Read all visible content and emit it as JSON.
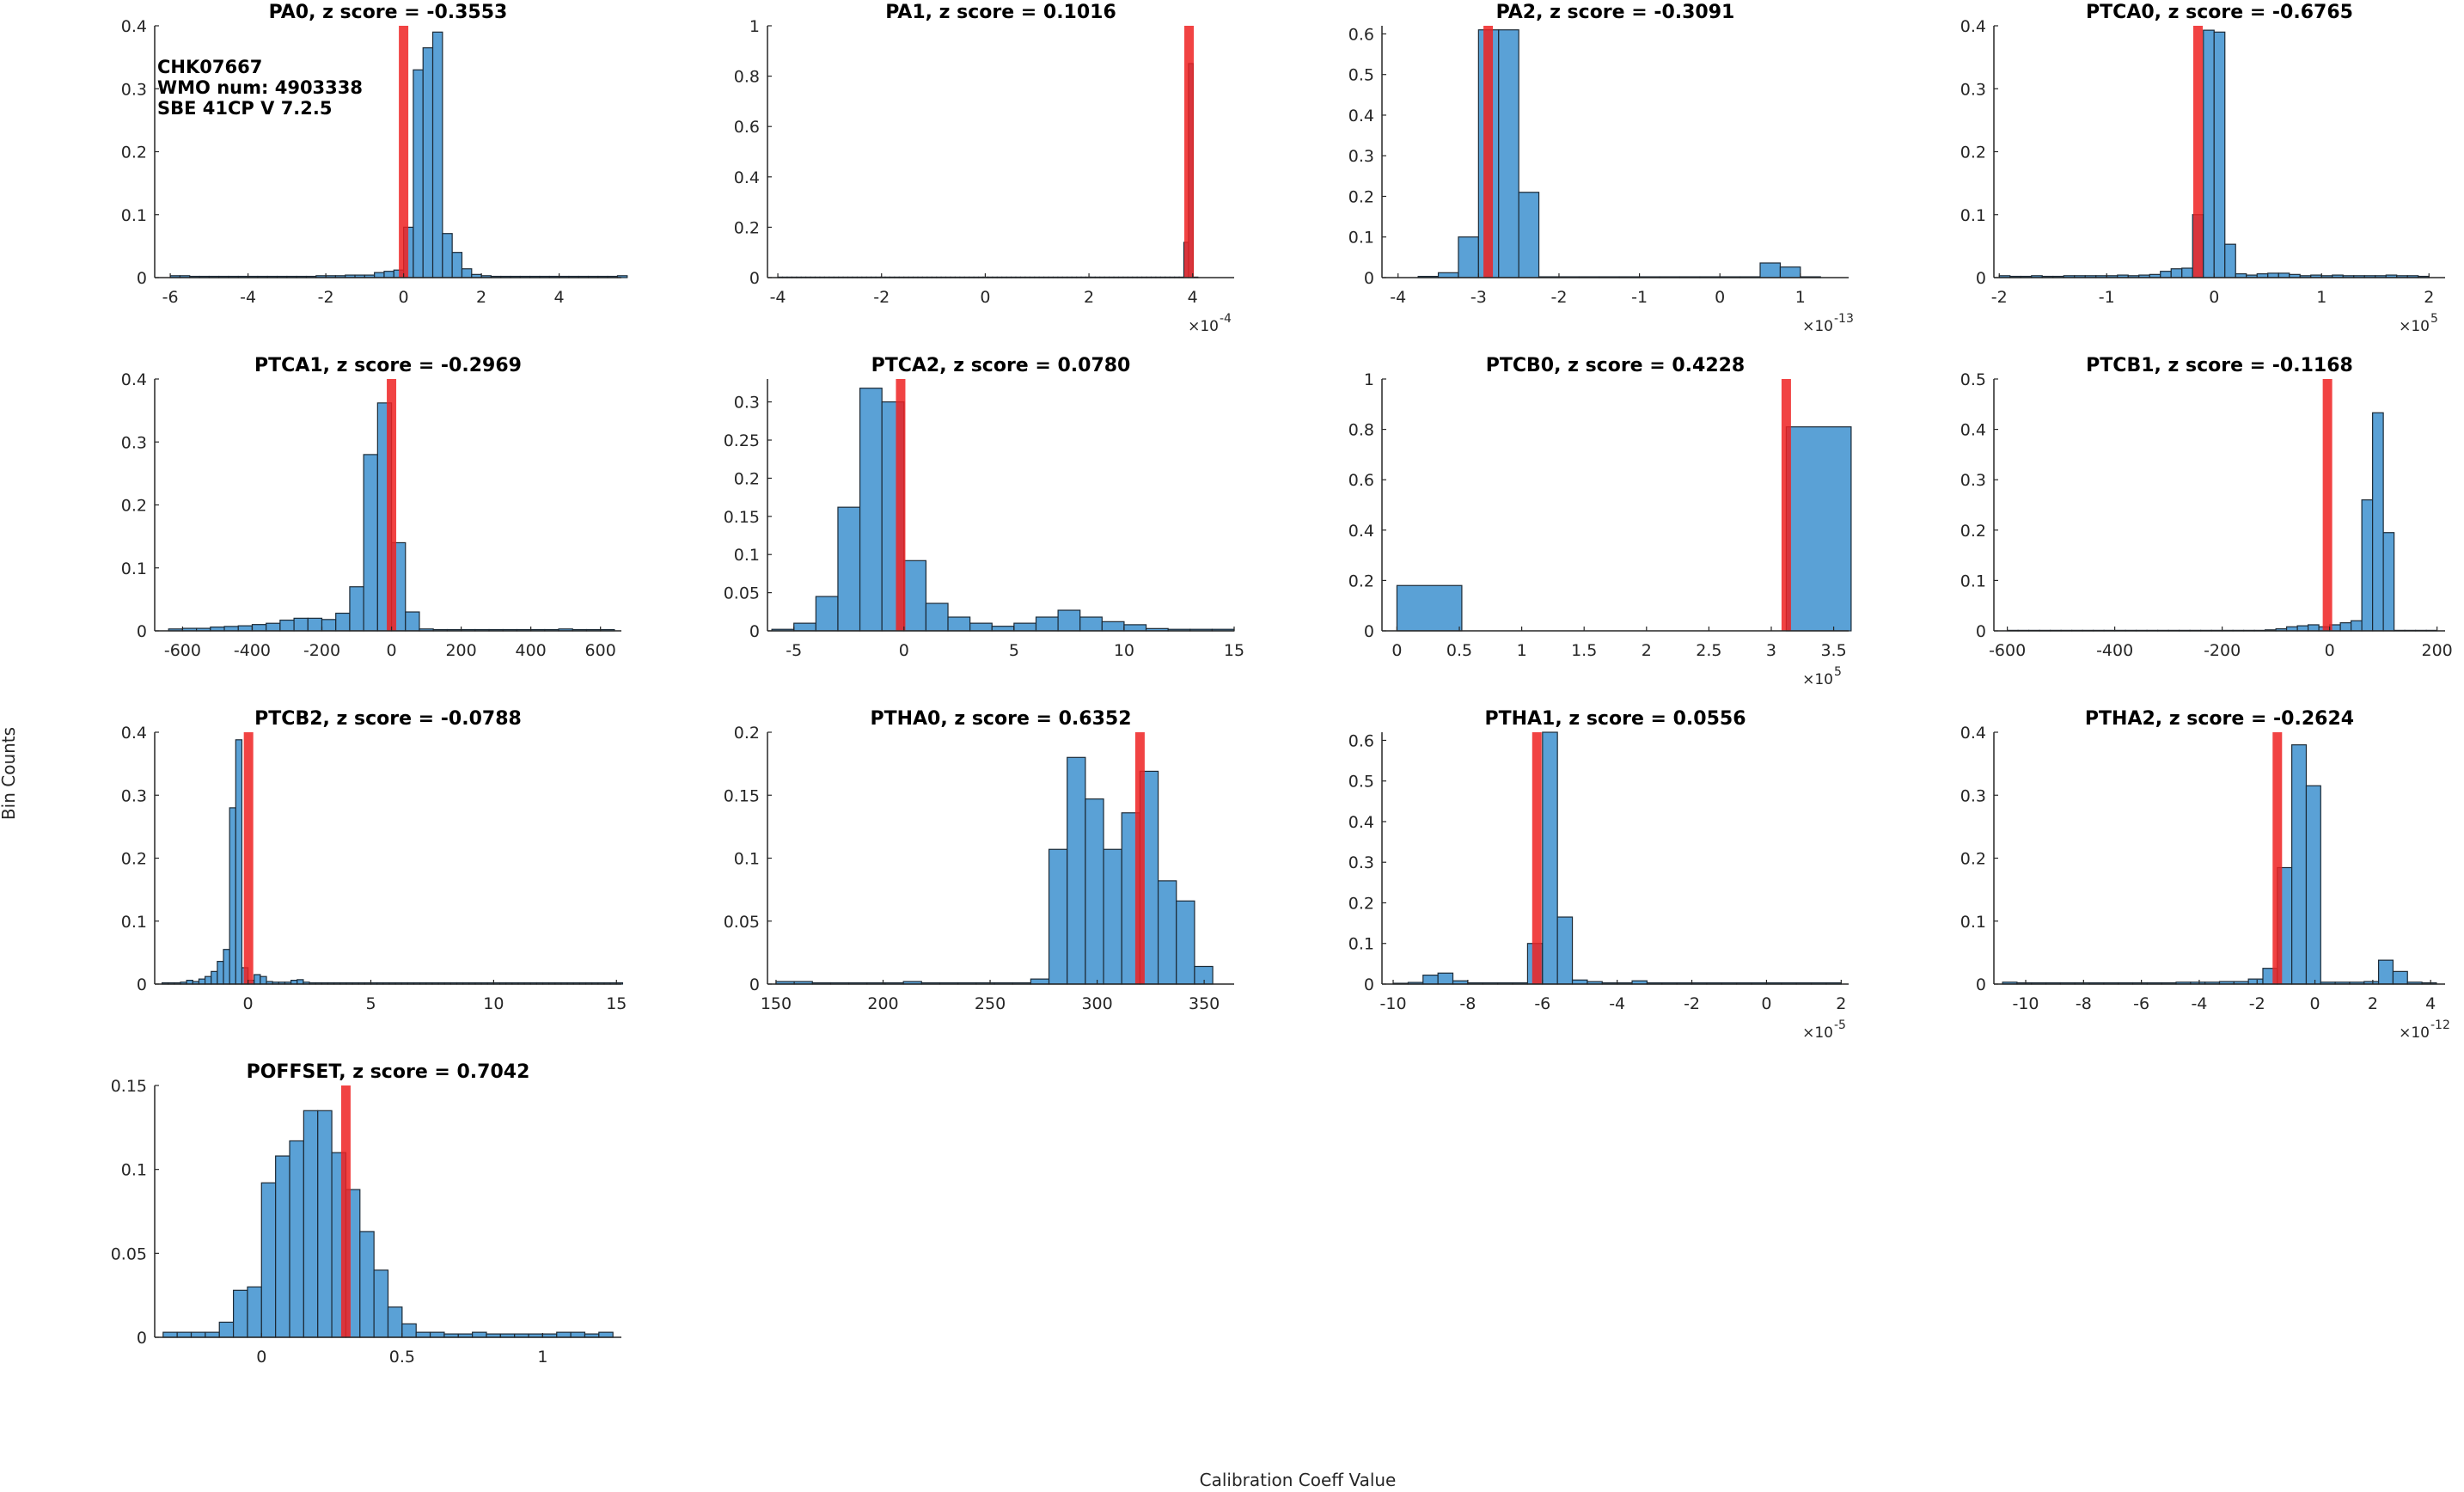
{
  "info": {
    "line1": "CHK07667",
    "line2": "WMO num: 4903338",
    "line3": "SBE 41CP V 7.2.5"
  },
  "figure": {
    "ylabel": "Bin Counts",
    "xlabel": "Calibration Coeff Value"
  },
  "colors": {
    "bar": "#5aa1d6",
    "bar_edge": "#1c2a36",
    "marker": "#ee2222"
  },
  "chart_data": [
    {
      "type": "bar",
      "title": "PA0, z score = -0.3553",
      "xlim": [
        -6.4,
        5.6
      ],
      "ylim": [
        0,
        0.4
      ],
      "xticks": [
        -6,
        -4,
        -2,
        0,
        2,
        4
      ],
      "xtick_labels": [
        "-6",
        "-4",
        "-2",
        "0",
        "2",
        "4"
      ],
      "yticks": [
        0,
        0.1,
        0.2,
        0.3,
        0.4
      ],
      "ytick_labels": [
        "0",
        "0.1",
        "0.2",
        "0.3",
        "0.4"
      ],
      "exponent": "",
      "bin_start": -6.0,
      "bin_width": 0.25,
      "values": [
        0.003,
        0.003,
        0.002,
        0.002,
        0.002,
        0.002,
        0.002,
        0.002,
        0.002,
        0.002,
        0.002,
        0.002,
        0.002,
        0.002,
        0.002,
        0.003,
        0.003,
        0.003,
        0.004,
        0.004,
        0.004,
        0.008,
        0.01,
        0.012,
        0.08,
        0.33,
        0.365,
        0.39,
        0.07,
        0.04,
        0.014,
        0.005,
        0.003,
        0.002,
        0.002,
        0.002,
        0.002,
        0.002,
        0.002,
        0.002,
        0.002,
        0.002,
        0.002,
        0.002,
        0.002,
        0.002,
        0.003
      ],
      "marker": 0.0
    },
    {
      "type": "bar",
      "title": "PA1, z score = 0.1016",
      "xlim": [
        -4.2,
        4.8
      ],
      "ylim": [
        0,
        1
      ],
      "xticks": [
        -4,
        -2,
        0,
        2,
        4
      ],
      "xtick_labels": [
        "-4",
        "-2",
        "0",
        "2",
        "4"
      ],
      "yticks": [
        0,
        0.2,
        0.4,
        0.6,
        0.8,
        1
      ],
      "ytick_labels": [
        "0",
        "0.2",
        "0.4",
        "0.6",
        "0.8",
        "1"
      ],
      "exponent": "-4",
      "bin_start": -4.0,
      "bin_width": 0.09,
      "values": [
        0.002,
        0.002,
        0.002,
        0.002,
        0.002,
        0.002,
        0.002,
        0.002,
        0.002,
        0.002,
        0.002,
        0.002,
        0.002,
        0.002,
        0.002,
        0.002,
        0.002,
        0.002,
        0.002,
        0.002,
        0.002,
        0.002,
        0.002,
        0.002,
        0.002,
        0.002,
        0.002,
        0.002,
        0.002,
        0.002,
        0.002,
        0.002,
        0.002,
        0.002,
        0.002,
        0.002,
        0.002,
        0.002,
        0.002,
        0.002,
        0.002,
        0.002,
        0.002,
        0.002,
        0.002,
        0.002,
        0.002,
        0.002,
        0.002,
        0.002,
        0.002,
        0.002,
        0.002,
        0.002,
        0.002,
        0.002,
        0.002,
        0.002,
        0.002,
        0.002,
        0.002,
        0.002,
        0.002,
        0.002,
        0.002,
        0.002,
        0.002,
        0.002,
        0.002,
        0.002,
        0.002,
        0.002,
        0.002,
        0.002,
        0.002,
        0.002,
        0.002,
        0.002,
        0.002,
        0.002,
        0.002,
        0.002,
        0.002,
        0.002,
        0.002,
        0.002,
        0.002,
        0.14,
        0.85,
        0.002
      ],
      "marker": 3.93
    },
    {
      "type": "bar",
      "title": "PA2, z score = -0.3091",
      "xlim": [
        -4.2,
        1.6
      ],
      "ylim": [
        0,
        0.62
      ],
      "xticks": [
        -4,
        -3,
        -2,
        -1,
        0,
        1
      ],
      "xtick_labels": [
        "-4",
        "-3",
        "-2",
        "-1",
        "0",
        "1"
      ],
      "yticks": [
        0,
        0.1,
        0.2,
        0.3,
        0.4,
        0.5,
        0.6
      ],
      "ytick_labels": [
        "0",
        "0.1",
        "0.2",
        "0.3",
        "0.4",
        "0.5",
        "0.6"
      ],
      "exponent": "-13",
      "bin_start": -3.75,
      "bin_width": 0.25,
      "values": [
        0.003,
        0.012,
        0.1,
        0.61,
        0.61,
        0.21,
        0.002,
        0.002,
        0.002,
        0.002,
        0.002,
        0.002,
        0.002,
        0.002,
        0.002,
        0.002,
        0.002,
        0.036,
        0.026,
        0.002
      ],
      "marker": -2.88
    },
    {
      "type": "bar",
      "title": "PTCA0, z score = -0.6765",
      "xlim": [
        -2.05,
        2.15
      ],
      "ylim": [
        0,
        0.4
      ],
      "xticks": [
        -2,
        -1,
        0,
        1,
        2
      ],
      "xtick_labels": [
        "-2",
        "-1",
        "0",
        "1",
        "2"
      ],
      "yticks": [
        0,
        0.1,
        0.2,
        0.3,
        0.4
      ],
      "ytick_labels": [
        "0",
        "0.1",
        "0.2",
        "0.3",
        "0.4"
      ],
      "exponent": "5",
      "bin_start": -2.0,
      "bin_width": 0.1,
      "values": [
        0.003,
        0.002,
        0.002,
        0.003,
        0.002,
        0.002,
        0.003,
        0.003,
        0.003,
        0.003,
        0.003,
        0.004,
        0.003,
        0.004,
        0.005,
        0.01,
        0.014,
        0.015,
        0.1,
        0.393,
        0.39,
        0.053,
        0.006,
        0.004,
        0.006,
        0.007,
        0.007,
        0.005,
        0.003,
        0.004,
        0.003,
        0.004,
        0.003,
        0.003,
        0.003,
        0.003,
        0.004,
        0.003,
        0.003,
        0.002
      ],
      "marker": -0.15
    },
    {
      "type": "bar",
      "title": "PTCA1, z score = -0.2969",
      "xlim": [
        -680,
        660
      ],
      "ylim": [
        0,
        0.4
      ],
      "xticks": [
        -600,
        -400,
        -200,
        0,
        200,
        400,
        600
      ],
      "xtick_labels": [
        "-600",
        "-400",
        "-200",
        "0",
        "200",
        "400",
        "600"
      ],
      "yticks": [
        0,
        0.1,
        0.2,
        0.3,
        0.4
      ],
      "ytick_labels": [
        "0",
        "0.1",
        "0.2",
        "0.3",
        "0.4"
      ],
      "exponent": "",
      "bin_start": -640,
      "bin_width": 40,
      "values": [
        0.003,
        0.004,
        0.004,
        0.006,
        0.007,
        0.008,
        0.01,
        0.012,
        0.017,
        0.02,
        0.02,
        0.018,
        0.028,
        0.07,
        0.28,
        0.362,
        0.14,
        0.03,
        0.003,
        0.002,
        0.002,
        0.002,
        0.002,
        0.002,
        0.002,
        0.002,
        0.002,
        0.002,
        0.003,
        0.002,
        0.002,
        0.002
      ],
      "marker": 0
    },
    {
      "type": "bar",
      "title": "PTCA2, z score = 0.0780",
      "xlim": [
        -6.2,
        15
      ],
      "ylim": [
        0,
        0.33
      ],
      "xticks": [
        -5,
        0,
        5,
        10,
        15
      ],
      "xtick_labels": [
        "-5",
        "0",
        "5",
        "10",
        "15"
      ],
      "yticks": [
        0,
        0.05,
        0.1,
        0.15,
        0.2,
        0.25,
        0.3
      ],
      "ytick_labels": [
        "0",
        "0.05",
        "0.1",
        "0.15",
        "0.2",
        "0.25",
        "0.3"
      ],
      "exponent": "",
      "bin_start": -6.0,
      "bin_width": 1.0,
      "values": [
        0.002,
        0.01,
        0.045,
        0.162,
        0.318,
        0.3,
        0.092,
        0.036,
        0.018,
        0.01,
        0.006,
        0.01,
        0.018,
        0.027,
        0.018,
        0.012,
        0.008,
        0.003,
        0.002,
        0.002,
        0.002
      ],
      "marker": -0.15
    },
    {
      "type": "bar",
      "title": "PTCB0, z score = 0.4228",
      "xlim": [
        -0.12,
        3.62
      ],
      "ylim": [
        0,
        1
      ],
      "xticks": [
        0,
        0.5,
        1,
        1.5,
        2,
        2.5,
        3,
        3.5
      ],
      "xtick_labels": [
        "0",
        "0.5",
        "1",
        "1.5",
        "2",
        "2.5",
        "3",
        "3.5"
      ],
      "yticks": [
        0,
        0.2,
        0.4,
        0.6,
        0.8,
        1
      ],
      "ytick_labels": [
        "0",
        "0.2",
        "0.4",
        "0.6",
        "0.8",
        "1"
      ],
      "exponent": "5",
      "bin_start": 0,
      "bin_width": 0.52,
      "values": [
        0.18,
        0,
        0,
        0,
        0,
        0,
        0.81
      ],
      "marker": 3.12
    },
    {
      "type": "bar",
      "title": "PTCB1, z score = -0.1168",
      "xlim": [
        -625,
        215
      ],
      "ylim": [
        0,
        0.5
      ],
      "xticks": [
        -600,
        -400,
        -200,
        0,
        200
      ],
      "xtick_labels": [
        "-600",
        "-400",
        "-200",
        "0",
        "200"
      ],
      "yticks": [
        0,
        0.1,
        0.2,
        0.3,
        0.4,
        0.5
      ],
      "ytick_labels": [
        "0",
        "0.1",
        "0.2",
        "0.3",
        "0.4",
        "0.5"
      ],
      "exponent": "",
      "bin_start": -600,
      "bin_width": 20,
      "values": [
        0.001,
        0.001,
        0.001,
        0.001,
        0.001,
        0.001,
        0.001,
        0.001,
        0.001,
        0.001,
        0.001,
        0.001,
        0.001,
        0.001,
        0.001,
        0.001,
        0.001,
        0.001,
        0.001,
        0.001,
        0.001,
        0.001,
        0.001,
        0.001,
        0.002,
        0.004,
        0.008,
        0.01,
        0.012,
        0.008,
        0.012,
        0.016,
        0.02,
        0.26,
        0.433,
        0.195,
        0.001,
        0.001,
        0.001,
        0.001
      ],
      "marker": -4
    },
    {
      "type": "bar",
      "title": "PTCB2, z score = -0.0788",
      "xlim": [
        -3.8,
        15.2
      ],
      "ylim": [
        0,
        0.4
      ],
      "xticks": [
        0,
        5,
        10,
        15
      ],
      "xtick_labels": [
        "0",
        "5",
        "10",
        "15"
      ],
      "yticks": [
        0,
        0.1,
        0.2,
        0.3,
        0.4
      ],
      "ytick_labels": [
        "0",
        "0.1",
        "0.2",
        "0.3",
        "0.4"
      ],
      "exponent": "",
      "bin_start": -3.5,
      "bin_width": 0.25,
      "values": [
        0.002,
        0.002,
        0.002,
        0.003,
        0.006,
        0.004,
        0.008,
        0.012,
        0.02,
        0.036,
        0.055,
        0.28,
        0.388,
        0.026,
        0.006,
        0.015,
        0.012,
        0.004,
        0.003,
        0.003,
        0.003,
        0.006,
        0.007,
        0.003,
        0.002,
        0.002,
        0.002,
        0.002,
        0.002,
        0.002,
        0.002,
        0.002,
        0.002,
        0.002,
        0.002,
        0.002,
        0.002,
        0.002,
        0.002,
        0.002,
        0.002,
        0.002,
        0.002,
        0.002,
        0.002,
        0.002,
        0.002,
        0.002,
        0.002,
        0.002,
        0.002,
        0.002,
        0.002,
        0.002,
        0.002,
        0.002,
        0.002,
        0.002,
        0.002,
        0.002,
        0.002,
        0.002,
        0.002,
        0.002,
        0.002,
        0.002,
        0.002,
        0.002,
        0.002,
        0.002,
        0.002,
        0.002,
        0.002,
        0.002,
        0.002
      ],
      "marker": 0.02
    },
    {
      "type": "bar",
      "title": "PTHA0, z score = 0.6352",
      "xlim": [
        146,
        364
      ],
      "ylim": [
        0,
        0.2
      ],
      "xticks": [
        150,
        200,
        250,
        300,
        350
      ],
      "xtick_labels": [
        "150",
        "200",
        "250",
        "300",
        "350"
      ],
      "yticks": [
        0,
        0.05,
        0.1,
        0.15,
        0.2
      ],
      "ytick_labels": [
        "0",
        "0.05",
        "0.1",
        "0.15",
        "0.2"
      ],
      "exponent": "",
      "bin_start": 150,
      "bin_width": 8.5,
      "values": [
        0.002,
        0.002,
        0.001,
        0.001,
        0.001,
        0.001,
        0.001,
        0.002,
        0.001,
        0.001,
        0.001,
        0.001,
        0.001,
        0.001,
        0.004,
        0.107,
        0.18,
        0.147,
        0.107,
        0.136,
        0.169,
        0.082,
        0.066,
        0.014
      ],
      "marker": 320
    },
    {
      "type": "bar",
      "title": "PTHA1, z score = 0.0556",
      "xlim": [
        -10.3,
        2.2
      ],
      "ylim": [
        0,
        0.62
      ],
      "xticks": [
        -10,
        -8,
        -6,
        -4,
        -2,
        0,
        2
      ],
      "xtick_labels": [
        "-10",
        "-8",
        "-6",
        "-4",
        "-2",
        "0",
        "2"
      ],
      "yticks": [
        0,
        0.1,
        0.2,
        0.3,
        0.4,
        0.5,
        0.6
      ],
      "ytick_labels": [
        "0",
        "0.1",
        "0.2",
        "0.3",
        "0.4",
        "0.5",
        "0.6"
      ],
      "exponent": "-5",
      "bin_start": -10.0,
      "bin_width": 0.4,
      "values": [
        0.002,
        0.004,
        0.022,
        0.027,
        0.008,
        0.003,
        0.003,
        0.003,
        0.003,
        0.1,
        0.62,
        0.165,
        0.01,
        0.006,
        0.003,
        0.003,
        0.008,
        0.003,
        0.003,
        0.003,
        0.003,
        0.003,
        0.003,
        0.003,
        0.003,
        0.003,
        0.003,
        0.003,
        0.003,
        0.003
      ],
      "marker": -6.15
    },
    {
      "type": "bar",
      "title": "PTHA2, z score = -0.2624",
      "xlim": [
        -11.1,
        4.5
      ],
      "ylim": [
        0,
        0.4
      ],
      "xticks": [
        -10,
        -8,
        -6,
        -4,
        -2,
        0,
        2,
        4
      ],
      "xtick_labels": [
        "-10",
        "-8",
        "-6",
        "-4",
        "-2",
        "0",
        "2",
        "4"
      ],
      "yticks": [
        0,
        0.1,
        0.2,
        0.3,
        0.4
      ],
      "ytick_labels": [
        "0",
        "0.1",
        "0.2",
        "0.3",
        "0.4"
      ],
      "exponent": "-12",
      "bin_start": -10.8,
      "bin_width": 0.5,
      "values": [
        0.003,
        0.002,
        0.002,
        0.002,
        0.002,
        0.002,
        0.002,
        0.002,
        0.002,
        0.002,
        0.002,
        0.002,
        0.003,
        0.003,
        0.003,
        0.004,
        0.004,
        0.008,
        0.025,
        0.185,
        0.38,
        0.315,
        0.003,
        0.003,
        0.003,
        0.004,
        0.038,
        0.02,
        0.003,
        0.002
      ],
      "marker": -1.3
    },
    {
      "type": "bar",
      "title": "POFFSET, z score = 0.7042",
      "xlim": [
        -0.38,
        1.28
      ],
      "ylim": [
        0,
        0.15
      ],
      "xticks": [
        0,
        0.5,
        1
      ],
      "xtick_labels": [
        "0",
        "0.5",
        "1"
      ],
      "yticks": [
        0,
        0.05,
        0.1,
        0.15
      ],
      "ytick_labels": [
        "0",
        "0.05",
        "0.1",
        "0.15"
      ],
      "exponent": "",
      "bin_start": -0.35,
      "bin_width": 0.05,
      "values": [
        0.003,
        0.003,
        0.003,
        0.003,
        0.009,
        0.028,
        0.03,
        0.092,
        0.108,
        0.117,
        0.135,
        0.135,
        0.11,
        0.088,
        0.063,
        0.04,
        0.018,
        0.008,
        0.003,
        0.003,
        0.002,
        0.002,
        0.003,
        0.002,
        0.002,
        0.002,
        0.002,
        0.002,
        0.003,
        0.003,
        0.002,
        0.003
      ],
      "marker": 0.3
    }
  ]
}
